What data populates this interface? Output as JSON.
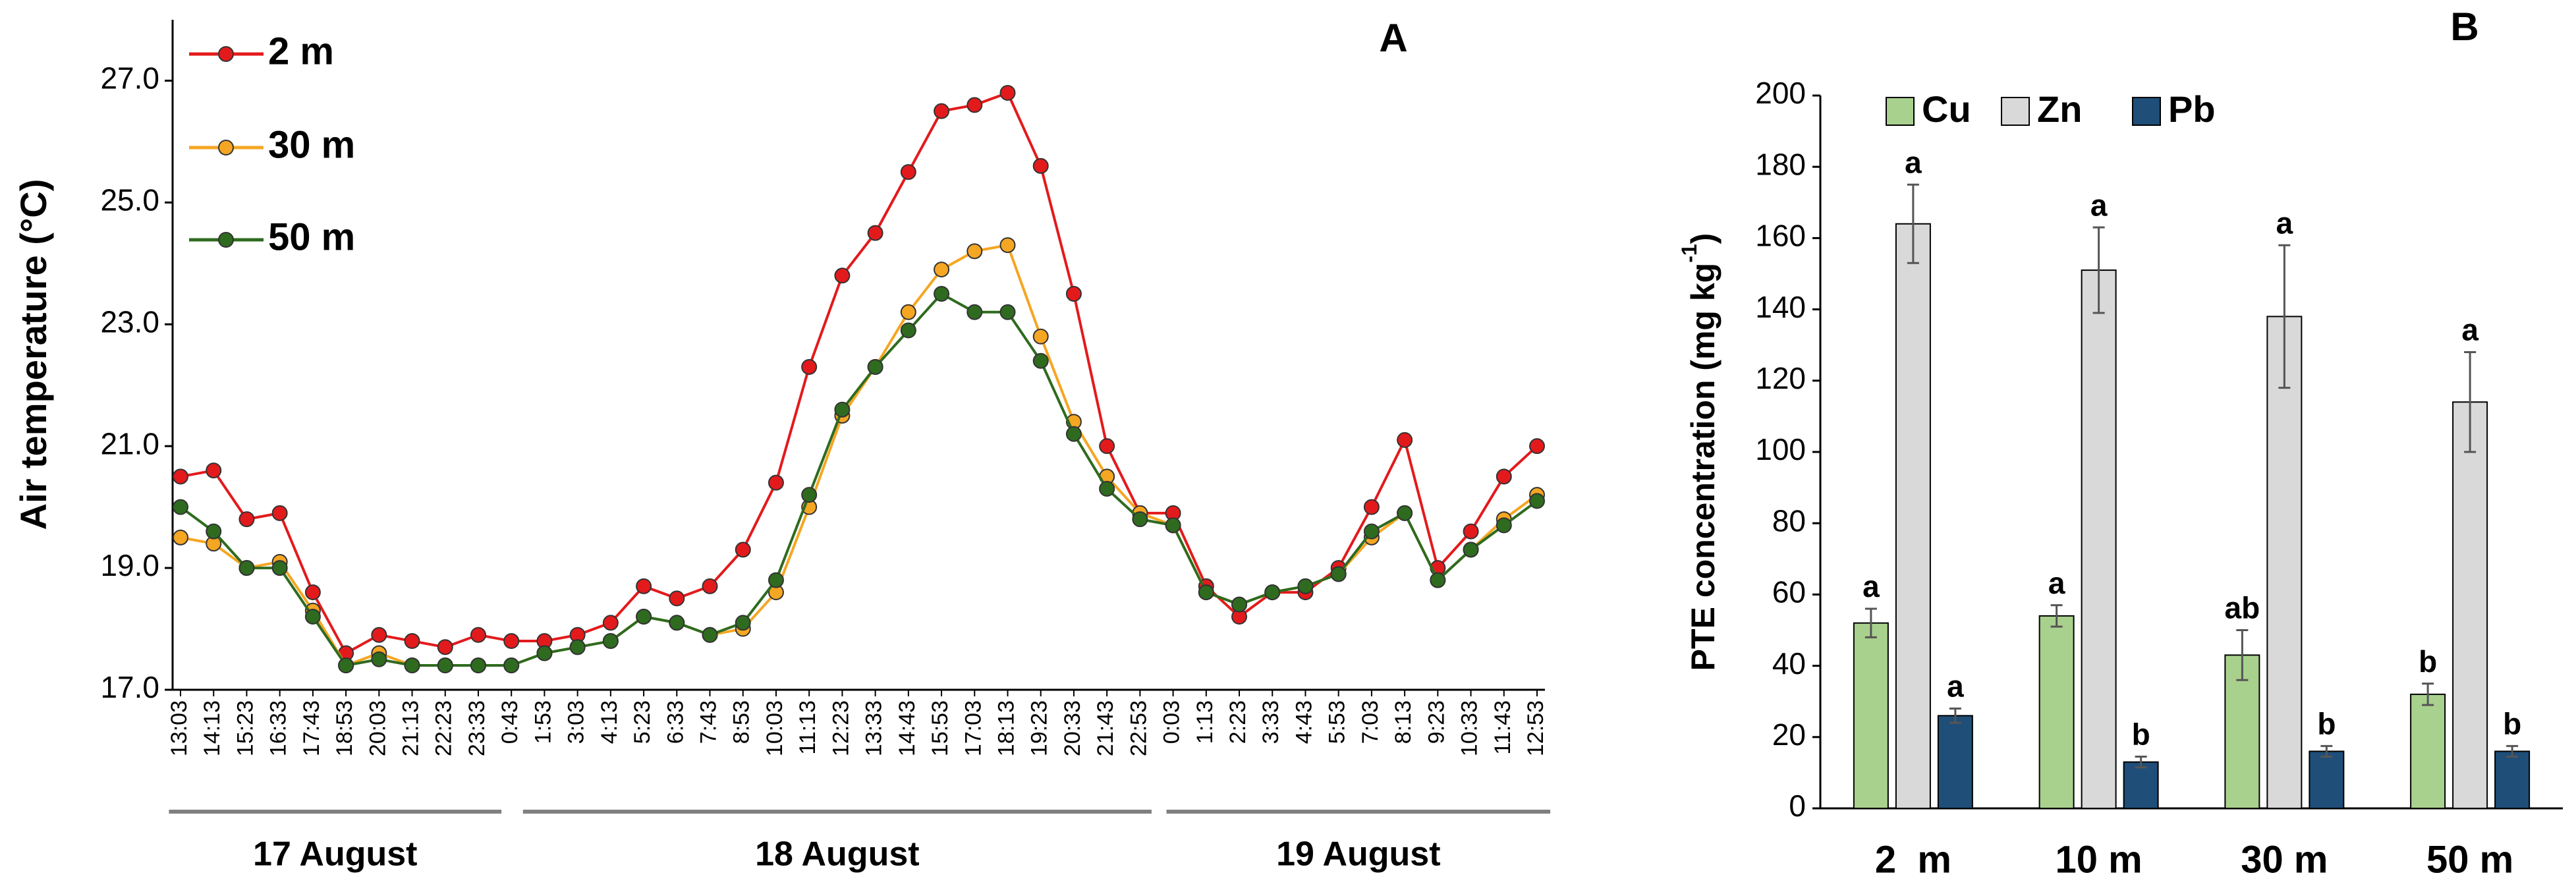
{
  "chart_data": [
    {
      "type": "line",
      "panel": "A",
      "y_label": "Air temperature (°C)",
      "categories": [
        "13:03",
        "14:13",
        "15:23",
        "16:33",
        "17:43",
        "18:53",
        "20:03",
        "21:13",
        "22:23",
        "23:33",
        "0:43",
        "1:53",
        "3:03",
        "4:13",
        "5:23",
        "6:33",
        "7:43",
        "8:53",
        "10:03",
        "11:13",
        "12:23",
        "13:33",
        "14:43",
        "15:53",
        "17:03",
        "18:13",
        "19:23",
        "20:33",
        "21:43",
        "22:53",
        "0:03",
        "1:13",
        "2:23",
        "3:33",
        "4:43",
        "5:53",
        "7:03",
        "8:13",
        "9:23",
        "10:33",
        "11:43",
        "12:53"
      ],
      "date_groups": [
        "17 August",
        "18 August",
        "19 August"
      ],
      "ylim": [
        17,
        28
      ],
      "yticks": [
        {
          "value": 17,
          "label": "17.0"
        },
        {
          "value": 19,
          "label": "19.0"
        },
        {
          "value": 21,
          "label": "21.0"
        },
        {
          "value": 23,
          "label": "23.0"
        },
        {
          "value": 25,
          "label": "25.0"
        },
        {
          "value": 27,
          "label": "27.0"
        }
      ],
      "series": [
        {
          "name": "2 m",
          "color": "#e31a1c",
          "values": [
            20.5,
            20.6,
            19.8,
            19.9,
            18.6,
            17.6,
            17.9,
            17.8,
            17.7,
            17.9,
            17.8,
            17.8,
            17.9,
            18.1,
            18.7,
            18.5,
            18.7,
            19.3,
            20.4,
            22.3,
            23.8,
            24.5,
            25.5,
            26.5,
            26.6,
            26.8,
            25.6,
            23.5,
            21.0,
            19.9,
            19.9,
            18.7,
            18.2,
            18.6,
            18.6,
            19.0,
            20.0,
            21.1,
            19.0,
            19.6,
            20.5,
            21.0
          ]
        },
        {
          "name": "30 m",
          "color": "#f5a623",
          "values": [
            19.5,
            19.4,
            19.0,
            19.1,
            18.3,
            17.4,
            17.6,
            17.4,
            17.4,
            17.4,
            17.4,
            17.6,
            17.7,
            17.8,
            18.2,
            18.1,
            17.9,
            18.0,
            18.6,
            20.0,
            21.5,
            22.3,
            23.2,
            23.9,
            24.2,
            24.3,
            22.8,
            21.4,
            20.5,
            19.9,
            19.7,
            18.6,
            18.4,
            18.6,
            18.7,
            18.9,
            19.5,
            19.9,
            18.8,
            19.3,
            19.8,
            20.2
          ]
        },
        {
          "name": "50 m",
          "color": "#2e6b1f",
          "values": [
            20.0,
            19.6,
            19.0,
            19.0,
            18.2,
            17.4,
            17.5,
            17.4,
            17.4,
            17.4,
            17.4,
            17.6,
            17.7,
            17.8,
            18.2,
            18.1,
            17.9,
            18.1,
            18.8,
            20.2,
            21.6,
            22.3,
            22.9,
            23.5,
            23.2,
            23.2,
            22.4,
            21.2,
            20.3,
            19.8,
            19.7,
            18.6,
            18.4,
            18.6,
            18.7,
            18.9,
            19.6,
            19.9,
            18.8,
            19.3,
            19.7,
            20.1
          ]
        }
      ],
      "legend": "upper left"
    },
    {
      "type": "bar",
      "panel": "B",
      "y_label": "PTE concentration (mg kg",
      "y_label_sup": "-1",
      "y_label_end": ")",
      "categories": [
        "2  m",
        "10 m",
        "30 m",
        "50 m"
      ],
      "ylim": [
        0,
        200
      ],
      "yticks": [
        0,
        20,
        40,
        60,
        80,
        100,
        120,
        140,
        160,
        180,
        200
      ],
      "series": [
        {
          "name": "Cu",
          "color": "#a9d18e",
          "values": [
            52,
            54,
            43,
            32
          ],
          "errors": [
            4,
            3,
            7,
            3
          ],
          "letters": [
            "a",
            "a",
            "ab",
            "b"
          ]
        },
        {
          "name": "Zn",
          "color": "#d9d9d9",
          "values": [
            164,
            151,
            138,
            114
          ],
          "errors": [
            11,
            12,
            20,
            14
          ],
          "letters": [
            "a",
            "a",
            "a",
            "a"
          ]
        },
        {
          "name": "Pb",
          "color": "#1f4e79",
          "values": [
            26,
            13,
            16,
            16
          ],
          "errors": [
            2,
            1.5,
            1.5,
            1.5
          ],
          "letters": [
            "a",
            "b",
            "b",
            "b"
          ]
        }
      ],
      "legend": "upper left"
    }
  ]
}
